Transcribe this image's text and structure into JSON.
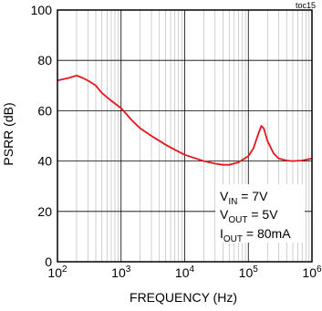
{
  "figure": {
    "tag": "toc15",
    "annotations": [
      {
        "main": "V",
        "sub": "IN",
        "rest": " = 7V"
      },
      {
        "main": "V",
        "sub": "OUT",
        "rest": " = 5V"
      },
      {
        "main": "I",
        "sub": "OUT",
        "rest": " = 80mA"
      }
    ]
  },
  "colors": {
    "curve": "#e8141b",
    "grid_major": "#000000",
    "grid_minor": "#b0b0b0"
  },
  "chart_data": {
    "type": "line",
    "title": "",
    "xlabel": "FREQUENCY (Hz)",
    "ylabel": "PSRR (dB)",
    "xscale": "log",
    "xlim": [
      100,
      1000000
    ],
    "ylim": [
      0,
      100
    ],
    "x_ticks": [
      {
        "base": "10",
        "exp": "2",
        "value": 100
      },
      {
        "base": "10",
        "exp": "3",
        "value": 1000
      },
      {
        "base": "10",
        "exp": "4",
        "value": 10000
      },
      {
        "base": "10",
        "exp": "5",
        "value": 100000
      },
      {
        "base": "10",
        "exp": "6",
        "value": 1000000
      }
    ],
    "y_ticks": [
      "0",
      "20",
      "40",
      "60",
      "80",
      "100"
    ],
    "grid": true,
    "series": [
      {
        "x": [
          100,
          150,
          200,
          250,
          300,
          400,
          500,
          700,
          1000,
          1500,
          2000,
          3000,
          5000,
          7000,
          10000,
          15000,
          20000,
          30000,
          40000,
          50000,
          70000,
          100000,
          120000,
          140000,
          160000,
          175000,
          200000,
          250000,
          300000,
          400000,
          500000,
          700000,
          1000000
        ],
        "y": [
          72,
          73,
          74,
          73,
          72,
          70,
          67,
          64,
          61,
          56,
          53,
          50,
          46.5,
          44.5,
          42.5,
          41,
          40,
          39,
          38.5,
          38.5,
          39.5,
          42,
          45,
          50,
          54,
          53,
          48,
          43,
          41,
          40.2,
          40,
          40.2,
          41
        ]
      }
    ]
  }
}
